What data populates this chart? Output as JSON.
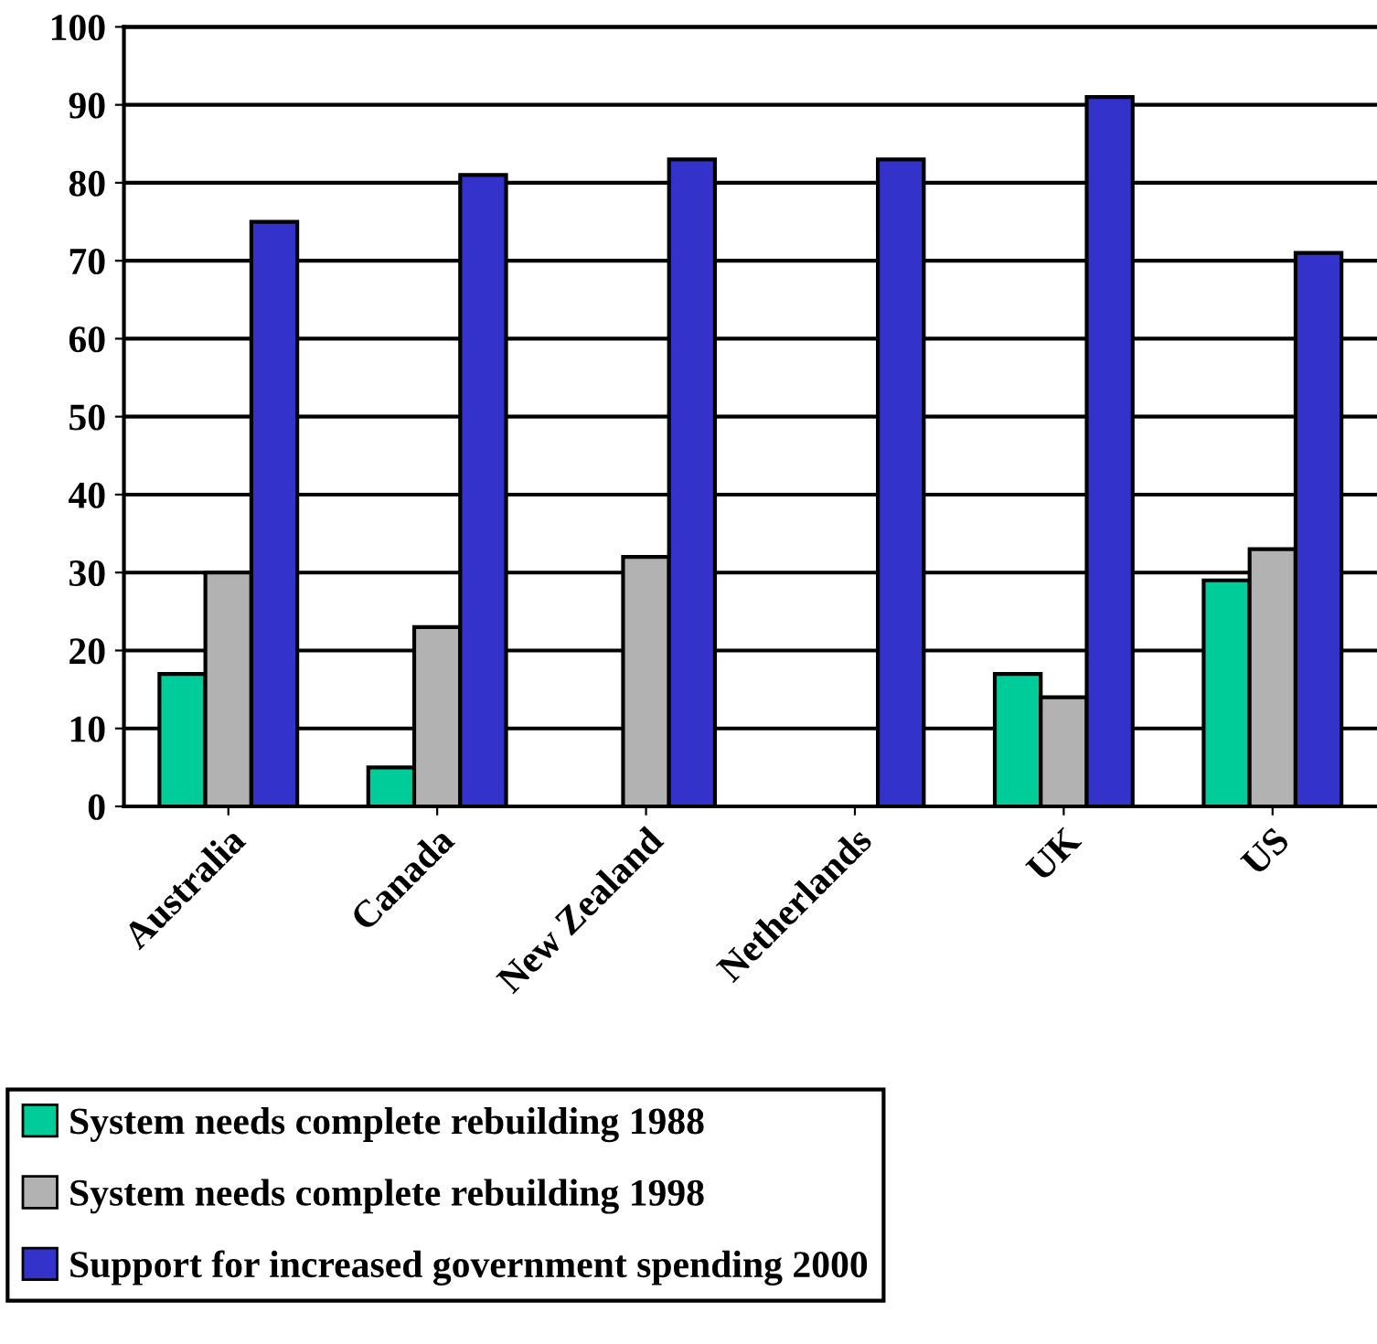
{
  "chart_data": {
    "type": "bar",
    "categories": [
      "Australia",
      "Canada",
      "New Zealand",
      "Netherlands",
      "UK",
      "US"
    ],
    "series": [
      {
        "name": "System needs complete rebuilding 1988",
        "color": "#00cc99",
        "values": [
          17,
          5,
          null,
          null,
          17,
          29
        ]
      },
      {
        "name": "System needs complete rebuilding 1998",
        "color": "#b2b2b2",
        "values": [
          30,
          23,
          32,
          null,
          14,
          33
        ]
      },
      {
        "name": "Support for increased government spending 2000",
        "color": "#3333cc",
        "values": [
          75,
          81,
          83,
          83,
          91,
          71
        ]
      }
    ],
    "ylim": [
      0,
      100
    ],
    "yticks": [
      0,
      10,
      20,
      30,
      40,
      50,
      60,
      70,
      80,
      90,
      100
    ],
    "grid": "y",
    "legend": "bottom"
  }
}
